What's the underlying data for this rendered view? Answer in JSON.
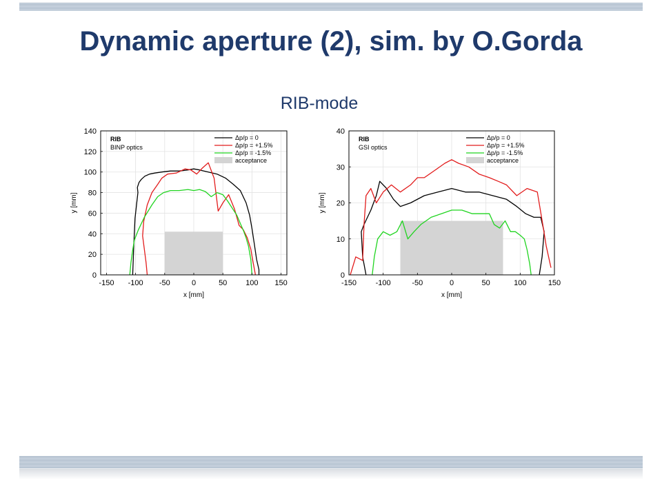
{
  "slide": {
    "title": "Dynamic aperture (2), sim. by O.Gorda",
    "subtitle": "RIB-mode"
  },
  "colors": {
    "title": "#1f3a6b",
    "dp0": "#000000",
    "dp_plus": "#e21b1b",
    "dp_minus": "#1fd41f",
    "acceptance": "#d4d4d4"
  },
  "chart_data": [
    {
      "type": "line",
      "title": "RIB",
      "subtitle": "BINP optics",
      "xlabel": "x [mm]",
      "ylabel": "y [mm]",
      "xlim": [
        -160,
        160
      ],
      "ylim": [
        0,
        140
      ],
      "xticks": [
        -150,
        -100,
        -50,
        0,
        50,
        100,
        150
      ],
      "yticks": [
        0,
        20,
        40,
        60,
        80,
        100,
        120,
        140
      ],
      "grid": true,
      "legend_position": "top-right",
      "acceptance": {
        "x": [
          -50,
          50
        ],
        "y": [
          0,
          42
        ],
        "label": "acceptance"
      },
      "series": [
        {
          "name": "Δp/p = 0",
          "color": "#000000",
          "x": [
            -105,
            -103,
            -101,
            -98,
            -96,
            -97,
            -94,
            -90,
            -84,
            -76,
            -67,
            -55,
            -40,
            -25,
            -10,
            0,
            10,
            25,
            40,
            55,
            68,
            80,
            90,
            96,
            100,
            104,
            108,
            112,
            112
          ],
          "y": [
            0,
            30,
            55,
            70,
            80,
            85,
            90,
            93,
            96,
            98,
            99,
            100,
            101,
            101,
            102,
            103,
            102,
            100,
            98,
            94,
            88,
            82,
            70,
            58,
            45,
            30,
            15,
            5,
            0
          ]
        },
        {
          "name": "Δp/p = +1.5%",
          "color": "#e21b1b",
          "x": [
            -80,
            -82,
            -85,
            -88,
            -86,
            -80,
            -72,
            -62,
            -55,
            -45,
            -30,
            -15,
            -5,
            0,
            5,
            15,
            25,
            35,
            42,
            50,
            60,
            70,
            78,
            85,
            92,
            98,
            102,
            106
          ],
          "y": [
            0,
            12,
            25,
            38,
            52,
            68,
            80,
            88,
            94,
            98,
            99,
            103,
            102,
            100,
            98,
            104,
            109,
            94,
            62,
            70,
            78,
            64,
            48,
            44,
            36,
            25,
            12,
            0
          ]
        },
        {
          "name": "Δp/p = -1.5%",
          "color": "#1fd41f",
          "x": [
            -110,
            -108,
            -105,
            -102,
            -95,
            -85,
            -72,
            -62,
            -52,
            -40,
            -25,
            -10,
            0,
            10,
            20,
            30,
            40,
            50,
            58,
            66,
            74,
            80,
            86,
            90,
            94,
            98,
            100
          ],
          "y": [
            0,
            12,
            24,
            34,
            44,
            56,
            68,
            76,
            80,
            82,
            82,
            83,
            82,
            83,
            81,
            76,
            80,
            78,
            72,
            65,
            58,
            50,
            42,
            36,
            28,
            15,
            0
          ]
        }
      ]
    },
    {
      "type": "line",
      "title": "RIB",
      "subtitle": "GSI optics",
      "xlabel": "x [mm]",
      "ylabel": "y [mm]",
      "xlim": [
        -150,
        150
      ],
      "ylim": [
        0,
        40
      ],
      "xticks": [
        -150,
        -100,
        -50,
        0,
        50,
        100,
        150
      ],
      "yticks": [
        0,
        10,
        20,
        30,
        40
      ],
      "grid": true,
      "legend_position": "top-right",
      "acceptance": {
        "x": [
          -75,
          75
        ],
        "y": [
          0,
          15
        ],
        "label": "acceptance"
      },
      "series": [
        {
          "name": "Δp/p = 0",
          "color": "#000000",
          "x": [
            -125,
            -130,
            -132,
            -128,
            -118,
            -110,
            -105,
            -95,
            -85,
            -75,
            -60,
            -40,
            -20,
            0,
            20,
            40,
            60,
            80,
            95,
            108,
            120,
            130,
            135,
            132,
            128
          ],
          "y": [
            0,
            5,
            12,
            14,
            18,
            22,
            26,
            24,
            21,
            19,
            20,
            22,
            23,
            24,
            23,
            23,
            22,
            21,
            19,
            17,
            16,
            16,
            12,
            5,
            0
          ]
        },
        {
          "name": "Δp/p = +1.5%",
          "color": "#e21b1b",
          "x": [
            -148,
            -140,
            -130,
            -128,
            -125,
            -118,
            -110,
            -100,
            -88,
            -75,
            -60,
            -50,
            -40,
            -25,
            -10,
            0,
            10,
            25,
            40,
            55,
            68,
            80,
            95,
            110,
            125,
            133,
            138,
            145
          ],
          "y": [
            0,
            5,
            4,
            14,
            22,
            24,
            20,
            23,
            25,
            23,
            25,
            27,
            27,
            29,
            31,
            32,
            31,
            30,
            28,
            27,
            26,
            25,
            22,
            24,
            23,
            14,
            8,
            2
          ]
        },
        {
          "name": "Δp/p = -1.5%",
          "color": "#1fd41f",
          "x": [
            -116,
            -113,
            -108,
            -100,
            -90,
            -80,
            -72,
            -64,
            -55,
            -45,
            -30,
            -15,
            0,
            15,
            30,
            45,
            55,
            62,
            70,
            78,
            86,
            93,
            100,
            106,
            110,
            114,
            116
          ],
          "y": [
            0,
            5,
            10,
            12,
            11,
            12,
            15,
            10,
            12,
            14,
            16,
            17,
            18,
            18,
            17,
            17,
            17,
            14,
            13,
            15,
            12,
            12,
            11,
            10,
            7,
            3,
            0
          ]
        }
      ]
    }
  ]
}
